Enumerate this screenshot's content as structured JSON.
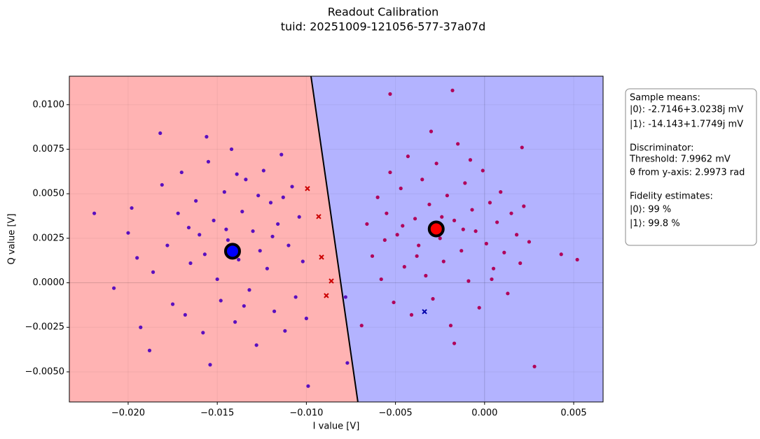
{
  "chart_data": {
    "type": "scatter",
    "title": "Readout Calibration",
    "subtitle": "tuid: 20251009-121056-577-37a07d",
    "x_label": "I value [V]",
    "y_label": "Q value [V]",
    "xlim": [
      -0.0233,
      0.00665
    ],
    "ylim": [
      -0.00669,
      0.0116
    ],
    "xticks": [
      {
        "value": -0.02,
        "label": "−0.020"
      },
      {
        "value": -0.015,
        "label": "−0.015"
      },
      {
        "value": -0.01,
        "label": "−0.010"
      },
      {
        "value": -0.005,
        "label": "−0.005"
      },
      {
        "value": 0,
        "label": "0.000"
      },
      {
        "value": 0.005,
        "label": "0.005"
      }
    ],
    "yticks": [
      {
        "value": -0.005,
        "label": "−0.0050"
      },
      {
        "value": -0.0025,
        "label": "−0.0025"
      },
      {
        "value": 0,
        "label": "0.0000"
      },
      {
        "value": 0.0025,
        "label": "0.0025"
      },
      {
        "value": 0.005,
        "label": "0.0050"
      },
      {
        "value": 0.0075,
        "label": "0.0075"
      },
      {
        "value": 0.01,
        "label": "0.0100"
      }
    ],
    "grid": true,
    "regions": {
      "left_color": "#ffb3b3",
      "right_color": "#b3b3ff"
    },
    "decision_boundary": {
      "x": [
        -0.00974,
        -0.00711
      ],
      "y": [
        0.0116,
        -0.00669
      ],
      "color": "#000000"
    },
    "series": [
      {
        "color": "#5a0fbf",
        "marker": "dot",
        "x": [
          -0.0219,
          -0.0208,
          -0.0182,
          -0.0156,
          -0.0154,
          -0.0099,
          -0.0078,
          -0.0077,
          -0.02,
          -0.0198,
          -0.0195,
          -0.0193,
          -0.0188,
          -0.0186,
          -0.0181,
          -0.0178,
          -0.0175,
          -0.0172,
          -0.017,
          -0.0168,
          -0.0165,
          -0.0162,
          -0.016,
          -0.0158,
          -0.0155,
          -0.0152,
          -0.015,
          -0.0148,
          -0.0146,
          -0.0144,
          -0.0142,
          -0.014,
          -0.0138,
          -0.0136,
          -0.0134,
          -0.0132,
          -0.013,
          -0.0128,
          -0.0126,
          -0.0124,
          -0.0122,
          -0.012,
          -0.0118,
          -0.0116,
          -0.0114,
          -0.0112,
          -0.011,
          -0.0108,
          -0.0106,
          -0.0104,
          -0.0102,
          -0.01,
          -0.0113,
          -0.0127,
          -0.0145,
          -0.0157,
          -0.0135,
          -0.0119,
          -0.0166,
          -0.0139
        ],
        "values": [
          0.0039,
          -0.0003,
          0.0084,
          0.0082,
          -0.0046,
          -0.0058,
          -0.0008,
          -0.0045,
          0.0028,
          0.0042,
          0.0014,
          -0.0025,
          -0.0038,
          0.0006,
          0.0055,
          0.0021,
          -0.0012,
          0.0039,
          0.0062,
          -0.0018,
          0.0011,
          0.0046,
          0.0027,
          -0.0028,
          0.0068,
          0.0035,
          0.0002,
          -0.001,
          0.0051,
          0.0024,
          0.0075,
          -0.0022,
          0.0013,
          0.004,
          0.0058,
          -0.0004,
          0.0029,
          -0.0035,
          0.0018,
          0.0063,
          0.0008,
          0.0045,
          -0.0016,
          0.0033,
          0.0072,
          -0.0027,
          0.0021,
          0.0054,
          -0.0008,
          0.0037,
          0.0012,
          -0.002,
          0.0048,
          0.0049,
          0.003,
          0.0016,
          -0.0013,
          0.0026,
          0.0031,
          0.0061
        ]
      },
      {
        "color": "#b0005a",
        "marker": "dot",
        "x": [
          -0.0053,
          -0.0018,
          0.0043,
          0.0052,
          0.0028,
          -0.0069,
          -0.0017,
          0.0021,
          -0.0066,
          -0.0063,
          -0.006,
          -0.0058,
          -0.0055,
          -0.0053,
          -0.0051,
          -0.0049,
          -0.0047,
          -0.0045,
          -0.0043,
          -0.0041,
          -0.0039,
          -0.0037,
          -0.0035,
          -0.0033,
          -0.0031,
          -0.0029,
          -0.0027,
          -0.0025,
          -0.0023,
          -0.0021,
          -0.0019,
          -0.0017,
          -0.0015,
          -0.0013,
          -0.0011,
          -0.0009,
          -0.0007,
          -0.0005,
          -0.0003,
          -0.0001,
          0.0001,
          0.0003,
          0.0005,
          0.0007,
          0.0009,
          0.0011,
          0.0013,
          0.0015,
          0.0018,
          0.002,
          0.0022,
          0.0025,
          -0.0038,
          -0.0024,
          -0.0012,
          -0.0046,
          -0.0008,
          -0.003,
          0.0004,
          -0.0056
        ],
        "values": [
          0.0106,
          0.0108,
          0.0016,
          0.0013,
          -0.0047,
          -0.0024,
          -0.0034,
          0.0076,
          0.0033,
          0.0015,
          0.0048,
          0.0002,
          0.0039,
          0.0062,
          -0.0011,
          0.0027,
          0.0053,
          0.0009,
          0.0071,
          -0.0018,
          0.0036,
          0.0021,
          0.0058,
          0.0004,
          0.0044,
          -0.0009,
          0.0067,
          0.0025,
          0.0012,
          0.0049,
          -0.0024,
          0.0035,
          0.0078,
          0.0018,
          0.0056,
          0.0001,
          0.0041,
          0.0029,
          -0.0014,
          0.0063,
          0.0022,
          0.0045,
          0.0008,
          0.0034,
          0.0051,
          0.0017,
          -0.0006,
          0.0039,
          0.0027,
          0.0011,
          0.0043,
          0.0023,
          0.0015,
          0.0037,
          0.003,
          0.0032,
          0.0069,
          0.0085,
          0.0002,
          0.0024
        ]
      },
      {
        "color": "#cc0000",
        "marker": "cross",
        "x": [
          -0.00994,
          -0.00931,
          -0.00915,
          -0.0086,
          -0.00888
        ],
        "values": [
          0.00529,
          0.00372,
          0.00144,
          0.0001,
          -0.00072
        ]
      },
      {
        "color": "#0000aa",
        "marker": "cross",
        "x": [
          -0.00337
        ],
        "values": [
          -0.00162
        ]
      },
      {
        "color": "#0000ff",
        "marker": "mean",
        "x": [
          -0.014143
        ],
        "values": [
          0.0017749
        ]
      },
      {
        "color": "#ff0000",
        "marker": "mean",
        "x": [
          -0.0027146
        ],
        "values": [
          0.0030238
        ]
      }
    ],
    "annotation": [
      "Sample means:",
      "|0⟩: -2.7146+3.0238j mV",
      "|1⟩: -14.143+1.7749j mV",
      "Discriminator:",
      "Threshold: 7.9962 mV",
      "θ from y-axis: 2.9973 rad",
      "Fidelity estimates:",
      "|0⟩: 99 %",
      "|1⟩: 99.8 %"
    ]
  }
}
